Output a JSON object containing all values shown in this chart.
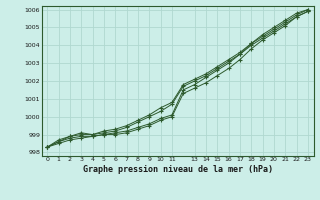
{
  "title": "Graphe pression niveau de la mer (hPa)",
  "bg_color": "#cceee8",
  "grid_color": "#b0d8d0",
  "line_color": "#2d5a2d",
  "xlim": [
    -0.5,
    23.5
  ],
  "ylim": [
    997.8,
    1006.2
  ],
  "xtick_positions": [
    0,
    1,
    2,
    3,
    4,
    5,
    6,
    7,
    8,
    9,
    10,
    11,
    13,
    14,
    15,
    16,
    17,
    18,
    19,
    20,
    21,
    22,
    23
  ],
  "xtick_labels": [
    "0",
    "1",
    "2",
    "3",
    "4",
    "5",
    "6",
    "7",
    "8",
    "9",
    "10",
    "11",
    "13",
    "14",
    "15",
    "16",
    "17",
    "18",
    "19",
    "20",
    "21",
    "22",
    "23"
  ],
  "ytick_positions": [
    998,
    999,
    1000,
    1001,
    1002,
    1003,
    1004,
    1005,
    1006
  ],
  "ytick_labels": [
    "998",
    "999",
    "1000",
    "1001",
    "1002",
    "1003",
    "1004",
    "1005",
    "1006"
  ],
  "series": [
    [
      998.3,
      998.6,
      998.8,
      998.9,
      998.9,
      999.0,
      999.1,
      999.2,
      999.4,
      999.6,
      999.9,
      1000.1,
      1001.5,
      1001.8,
      1002.2,
      1002.6,
      1003.0,
      1003.5,
      1004.1,
      1004.6,
      1005.0,
      1005.4,
      1005.8,
      1006.0
    ],
    [
      998.3,
      998.6,
      998.9,
      999.0,
      999.0,
      999.1,
      999.2,
      999.4,
      999.7,
      1000.0,
      1000.3,
      1000.7,
      1001.7,
      1002.0,
      1002.3,
      1002.7,
      1003.1,
      1003.5,
      1004.0,
      1004.4,
      1004.8,
      1005.2,
      1005.6,
      1005.9
    ],
    [
      998.3,
      998.7,
      998.9,
      999.1,
      999.0,
      999.2,
      999.3,
      999.5,
      999.8,
      1000.1,
      1000.5,
      1000.8,
      1001.8,
      1002.1,
      1002.4,
      1002.8,
      1003.2,
      1003.6,
      1004.1,
      1004.5,
      1004.9,
      1005.3,
      1005.7,
      1006.0
    ],
    [
      998.3,
      998.5,
      998.7,
      998.8,
      998.9,
      999.0,
      999.0,
      999.1,
      999.3,
      999.5,
      999.8,
      1000.0,
      1001.3,
      1001.6,
      1001.9,
      1002.3,
      1002.7,
      1003.2,
      1003.8,
      1004.3,
      1004.7,
      1005.1,
      1005.6,
      1005.9
    ]
  ]
}
